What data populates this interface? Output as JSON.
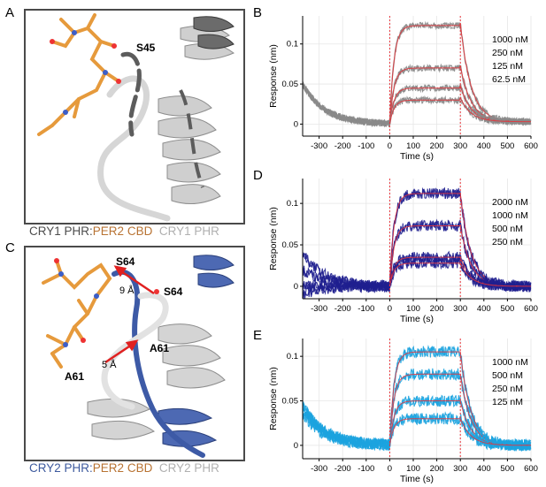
{
  "panels": {
    "A": {
      "letter": "A",
      "residue_labels": [
        "S45"
      ],
      "caption": {
        "part1": "CRY1 PHR",
        "sep": ":",
        "part2": "PER2 CBD",
        "part3": "CRY1 PHR"
      }
    },
    "C": {
      "letter": "C",
      "residue_labels": [
        "S64",
        "S64",
        "A61",
        "A61"
      ],
      "distances": [
        "9 Å",
        "5 Å"
      ],
      "caption": {
        "part1": "CRY2 PHR",
        "sep": ":",
        "part2": "PER2 CBD",
        "part3": "CRY2 PHR"
      }
    }
  },
  "colors": {
    "panel_B_trace": "#8a8a8a",
    "panel_D_trace": "#1f1f8f",
    "panel_E_trace": "#1ca3df",
    "fit_line": "#e8333a",
    "injection_marker": "#e8333a",
    "cry1_dark": "#5a5a5a",
    "cry_light": "#c9c9c9",
    "per2": "#e69a3c",
    "cry2_blue": "#3d5aa6"
  },
  "chart_data": [
    {
      "panel": "B",
      "type": "line",
      "xlabel": "Time (s)",
      "ylabel": "Response (nm)",
      "xlim": [
        -370,
        600
      ],
      "ylim": [
        -0.015,
        0.135
      ],
      "xticks": [
        -300,
        -200,
        -100,
        0,
        100,
        200,
        300,
        400,
        500,
        600
      ],
      "yticks": [
        0,
        0.05,
        0.1
      ],
      "ytick_labels": [
        "0",
        "0.05",
        "0.1"
      ],
      "grid": true,
      "injection_start": 0,
      "injection_end": 300,
      "legend": [
        "1000 nM",
        "250 nM",
        "125 nM",
        "62.5 nM"
      ],
      "series": [
        {
          "name": "1000 nM",
          "plateau": 0.123,
          "pre_start": 0.05
        },
        {
          "name": "250 nM",
          "plateau": 0.07,
          "pre_start": 0.05
        },
        {
          "name": "125 nM",
          "plateau": 0.045,
          "pre_start": 0.05
        },
        {
          "name": "62.5 nM",
          "plateau": 0.03,
          "pre_start": 0.05
        }
      ],
      "end_value": 0.003
    },
    {
      "panel": "D",
      "type": "line",
      "xlabel": "Time (s)",
      "ylabel": "Response (nm)",
      "xlim": [
        -370,
        600
      ],
      "ylim": [
        -0.015,
        0.13
      ],
      "xticks": [
        -300,
        -200,
        -100,
        0,
        100,
        200,
        300,
        400,
        500,
        600
      ],
      "yticks": [
        0,
        0.05,
        0.1
      ],
      "ytick_labels": [
        "0",
        "0.05",
        "0.1"
      ],
      "grid": true,
      "injection_start": 0,
      "injection_end": 300,
      "legend": [
        "2000 nM",
        "1000 nM",
        "500 nM",
        "250 nM"
      ],
      "series": [
        {
          "name": "2000 nM",
          "plateau": 0.112,
          "pre_start": 0.04
        },
        {
          "name": "1000 nM",
          "plateau": 0.073,
          "pre_start": 0.02
        },
        {
          "name": "500 nM",
          "plateau": 0.035,
          "pre_start": 0.0
        },
        {
          "name": "250 nM",
          "plateau": 0.028,
          "pre_start": -0.01
        }
      ],
      "end_value": 0.0
    },
    {
      "panel": "E",
      "type": "line",
      "xlabel": "Time (s)",
      "ylabel": "Response (nm)",
      "xlim": [
        -370,
        600
      ],
      "ylim": [
        -0.015,
        0.12
      ],
      "xticks": [
        -300,
        -200,
        -100,
        0,
        100,
        200,
        300,
        400,
        500,
        600
      ],
      "yticks": [
        0,
        0.05,
        0.1
      ],
      "ytick_labels": [
        "0",
        "0.05",
        "0.1"
      ],
      "grid": true,
      "injection_start": 0,
      "injection_end": 300,
      "legend": [
        "1000 nM",
        "500 nM",
        "250 nM",
        "125 nM"
      ],
      "series": [
        {
          "name": "1000 nM",
          "plateau": 0.105,
          "pre_start": 0.045
        },
        {
          "name": "500 nM",
          "plateau": 0.08,
          "pre_start": 0.045
        },
        {
          "name": "250 nM",
          "plateau": 0.05,
          "pre_start": 0.04
        },
        {
          "name": "125 nM",
          "plateau": 0.03,
          "pre_start": 0.035
        }
      ],
      "end_value": 0.0
    }
  ]
}
